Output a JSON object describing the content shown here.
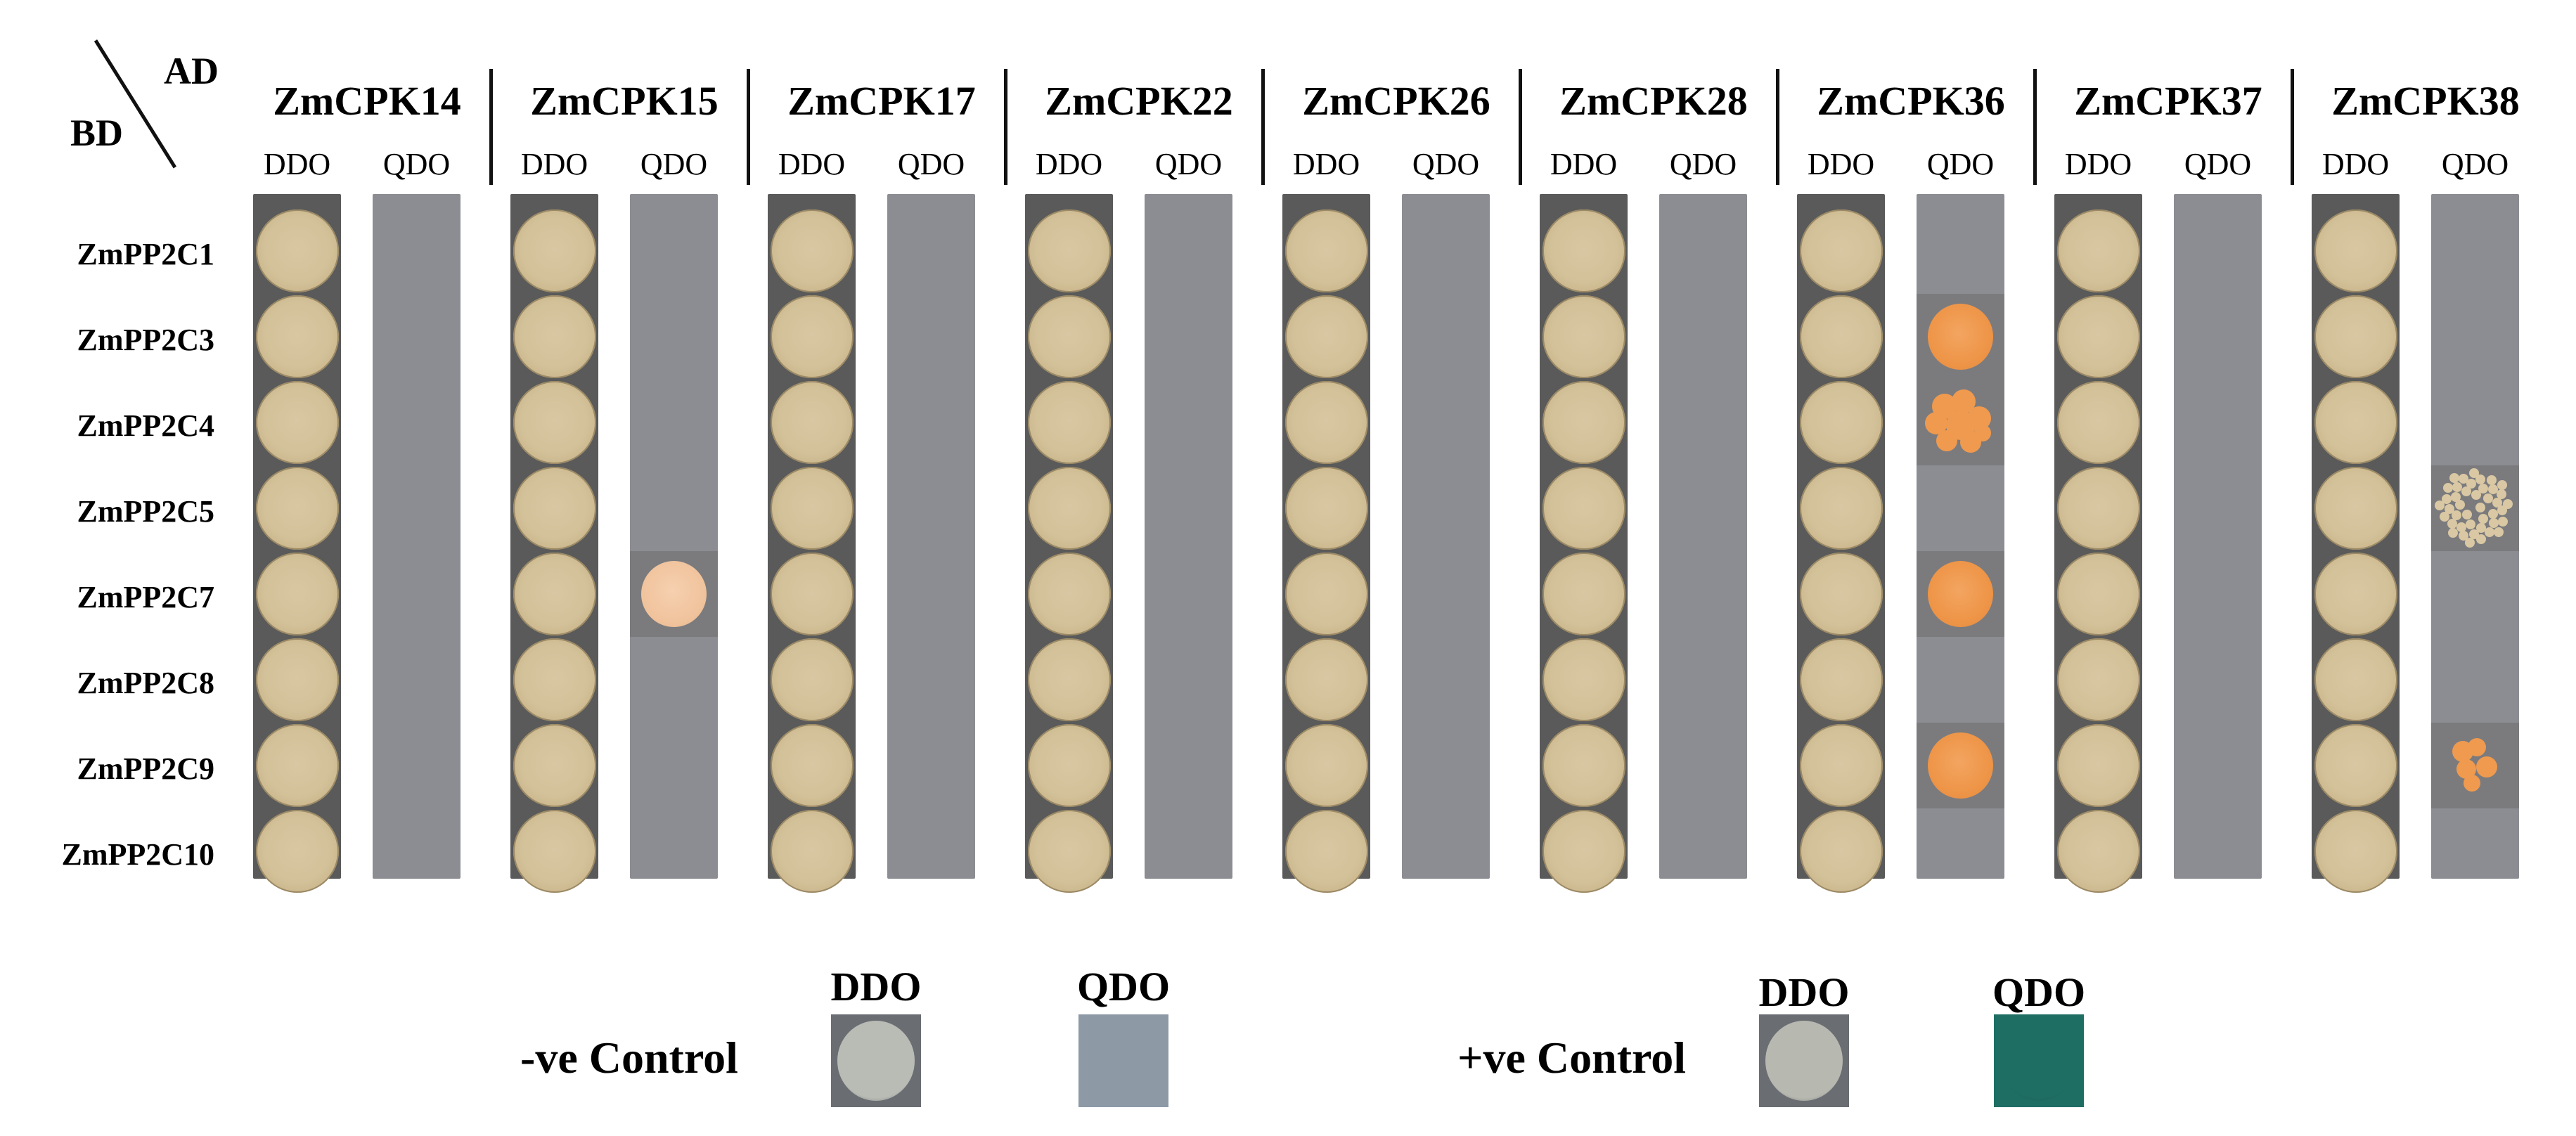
{
  "header": {
    "ad_label": "AD",
    "bd_label": "BD"
  },
  "condition_labels": [
    "DDO",
    "QDO"
  ],
  "ad_constructs": [
    {
      "name": "ZmCPK14"
    },
    {
      "name": "ZmCPK15"
    },
    {
      "name": "ZmCPK17"
    },
    {
      "name": "ZmCPK22"
    },
    {
      "name": "ZmCPK26"
    },
    {
      "name": "ZmCPK28"
    },
    {
      "name": "ZmCPK36"
    },
    {
      "name": "ZmCPK37"
    },
    {
      "name": "ZmCPK38"
    }
  ],
  "bd_constructs": [
    {
      "name": "ZmPP2C1"
    },
    {
      "name": "ZmPP2C3"
    },
    {
      "name": "ZmPP2C4"
    },
    {
      "name": "ZmPP2C5"
    },
    {
      "name": "ZmPP2C7"
    },
    {
      "name": "ZmPP2C8"
    },
    {
      "name": "ZmPP2C9"
    },
    {
      "name": "ZmPP2C10"
    }
  ],
  "qdo_growth": [
    {
      "ad": "ZmCPK15",
      "bd": "ZmPP2C7",
      "form": "pale-colony"
    },
    {
      "ad": "ZmCPK36",
      "bd": "ZmPP2C3",
      "form": "colony"
    },
    {
      "ad": "ZmCPK36",
      "bd": "ZmPP2C4",
      "form": "lumpy-colony"
    },
    {
      "ad": "ZmCPK36",
      "bd": "ZmPP2C7",
      "form": "colony"
    },
    {
      "ad": "ZmCPK36",
      "bd": "ZmPP2C9",
      "form": "colony"
    },
    {
      "ad": "ZmCPK38",
      "bd": "ZmPP2C5",
      "form": "speckled-colonies"
    },
    {
      "ad": "ZmCPK38",
      "bd": "ZmPP2C9",
      "form": "small-clusters"
    }
  ],
  "controls": {
    "negative": {
      "label": "-ve Control",
      "ddo_label": "DDO",
      "qdo_label": "QDO",
      "ddo_color": "#b9bcb5",
      "qdo_color": "#8e99a6"
    },
    "positive": {
      "label": "+ve Control",
      "ddo_label": "DDO",
      "qdo_label": "QDO",
      "ddo_color": "#b7b9b1",
      "qdo_color": "#1f6e63"
    }
  },
  "colors": {
    "ddo_strip": "#595a59",
    "qdo_strip": "#8c8d92",
    "ddo_spot": "#d3c199",
    "qdo_positive": "#ee9548"
  }
}
